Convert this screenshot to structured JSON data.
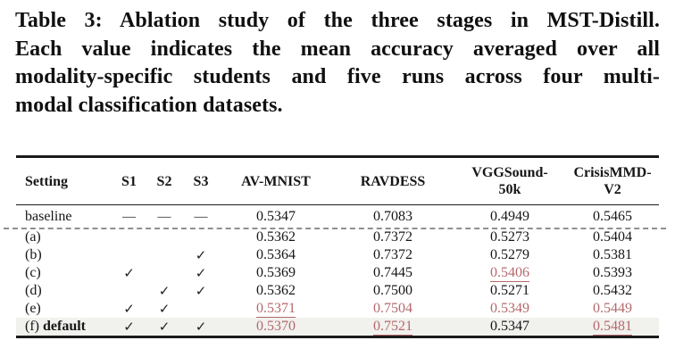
{
  "caption": {
    "lines": [
      "Table 3: Ablation study of the three stages in MST-Distill.",
      "Each value indicates the mean accuracy averaged over all",
      "modality-specific students and five runs across four multi-",
      "modal classification datasets."
    ]
  },
  "table": {
    "headers": [
      {
        "line1": "Setting",
        "line2": ""
      },
      {
        "line1": "S1",
        "line2": ""
      },
      {
        "line1": "S2",
        "line2": ""
      },
      {
        "line1": "S3",
        "line2": ""
      },
      {
        "line1": "AV-MNIST",
        "line2": ""
      },
      {
        "line1": "RAVDESS",
        "line2": ""
      },
      {
        "line1": "VGGSound-",
        "line2": "50k"
      },
      {
        "line1": "CrisisMMD-",
        "line2": "V2"
      }
    ],
    "rows": [
      {
        "setting": "baseline",
        "setting_bold": "",
        "group": "baseline",
        "s1": "—",
        "s2": "—",
        "s3": "—",
        "highlight_row": false,
        "values": [
          {
            "text": "0.5347",
            "red": false,
            "underlined": false
          },
          {
            "text": "0.7083",
            "red": false,
            "underlined": false
          },
          {
            "text": "0.4949",
            "red": false,
            "underlined": false
          },
          {
            "text": "0.5465",
            "red": false,
            "underlined": false
          }
        ]
      },
      {
        "setting": "(a)",
        "setting_bold": "",
        "group": "ablation",
        "s1": "",
        "s2": "",
        "s3": "",
        "highlight_row": false,
        "values": [
          {
            "text": "0.5362",
            "red": false,
            "underlined": false
          },
          {
            "text": "0.7372",
            "red": false,
            "underlined": false
          },
          {
            "text": "0.5273",
            "red": false,
            "underlined": false
          },
          {
            "text": "0.5404",
            "red": false,
            "underlined": false
          }
        ]
      },
      {
        "setting": "(b)",
        "setting_bold": "",
        "group": "ablation",
        "s1": "",
        "s2": "",
        "s3": "✓",
        "highlight_row": false,
        "values": [
          {
            "text": "0.5364",
            "red": false,
            "underlined": false
          },
          {
            "text": "0.7372",
            "red": false,
            "underlined": false
          },
          {
            "text": "0.5279",
            "red": false,
            "underlined": false
          },
          {
            "text": "0.5381",
            "red": false,
            "underlined": false
          }
        ]
      },
      {
        "setting": "(c)",
        "setting_bold": "",
        "group": "ablation",
        "s1": "✓",
        "s2": "",
        "s3": "✓",
        "highlight_row": false,
        "values": [
          {
            "text": "0.5369",
            "red": false,
            "underlined": false
          },
          {
            "text": "0.7445",
            "red": false,
            "underlined": false
          },
          {
            "text": "0.5406",
            "red": true,
            "underlined": true
          },
          {
            "text": "0.5393",
            "red": false,
            "underlined": false
          }
        ]
      },
      {
        "setting": "(d)",
        "setting_bold": "",
        "group": "ablation",
        "s1": "",
        "s2": "✓",
        "s3": "✓",
        "highlight_row": false,
        "values": [
          {
            "text": "0.5362",
            "red": false,
            "underlined": false
          },
          {
            "text": "0.7500",
            "red": false,
            "underlined": false
          },
          {
            "text": "0.5271",
            "red": false,
            "underlined": false
          },
          {
            "text": "0.5432",
            "red": false,
            "underlined": false
          }
        ]
      },
      {
        "setting": "(e)",
        "setting_bold": "",
        "group": "ablation",
        "s1": "✓",
        "s2": "✓",
        "s3": "",
        "highlight_row": false,
        "values": [
          {
            "text": "0.5371",
            "red": true,
            "underlined": true
          },
          {
            "text": "0.7504",
            "red": true,
            "underlined": false
          },
          {
            "text": "0.5349",
            "red": true,
            "underlined": false
          },
          {
            "text": "0.5449",
            "red": true,
            "underlined": false
          }
        ]
      },
      {
        "setting": "(f)",
        "setting_bold": "default",
        "group": "ablation",
        "s1": "✓",
        "s2": "✓",
        "s3": "✓",
        "highlight_row": true,
        "values": [
          {
            "text": "0.5370",
            "red": true,
            "underlined": false
          },
          {
            "text": "0.7521",
            "red": true,
            "underlined": true
          },
          {
            "text": "0.5347",
            "red": false,
            "underlined": false
          },
          {
            "text": "0.5481",
            "red": true,
            "underlined": true
          }
        ]
      }
    ],
    "colors": {
      "accent_red": "#b5686c",
      "row_highlight": "#f1f1ee",
      "rule": "#1a1a1a",
      "dashed_separator": "#8f8f8f"
    }
  }
}
